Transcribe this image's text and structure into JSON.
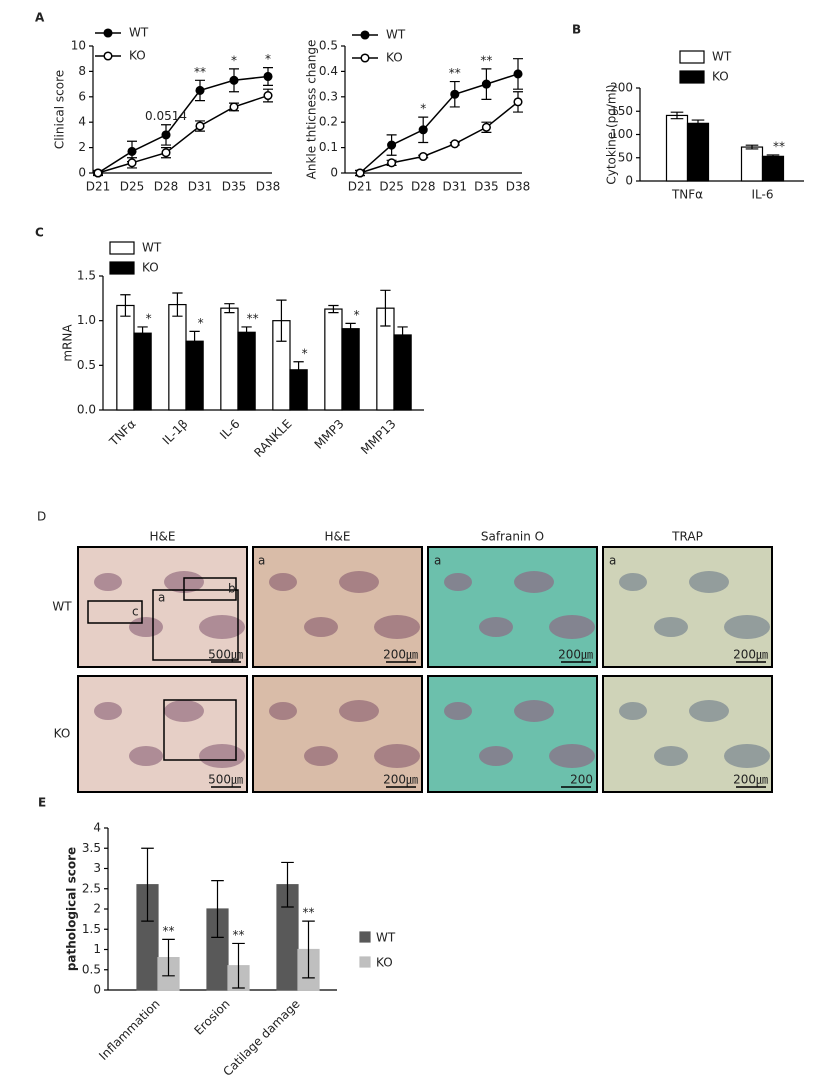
{
  "chart_data": [
    {
      "type": "line",
      "panel": "A",
      "ylabel": "Clinical score",
      "categories": [
        "D21",
        "D25",
        "D28",
        "D31",
        "D35",
        "D38"
      ],
      "ylim": [
        0,
        10
      ],
      "yticks": [
        0,
        2,
        4,
        6,
        8,
        10
      ],
      "series": [
        {
          "name": "WT",
          "color": "#000000",
          "marker_fill": "#000000",
          "values": [
            0,
            1.7,
            3.0,
            6.5,
            7.3,
            7.6
          ],
          "errors": [
            0.2,
            0.8,
            0.8,
            0.8,
            0.9,
            0.7
          ],
          "annotations": [
            null,
            null,
            "0.0514",
            "**",
            "*",
            "*"
          ]
        },
        {
          "name": "KO",
          "color": "#000000",
          "marker_fill": "#ffffff",
          "values": [
            0,
            0.8,
            1.6,
            3.7,
            5.2,
            6.1
          ],
          "errors": [
            0.1,
            0.4,
            0.4,
            0.4,
            0.3,
            0.5
          ]
        }
      ]
    },
    {
      "type": "line",
      "ylabel": "Ankle thticness change",
      "categories": [
        "D21",
        "D25",
        "D28",
        "D31",
        "D35",
        "D38"
      ],
      "ylim": [
        0,
        0.5
      ],
      "yticks": [
        0,
        0.1,
        0.2,
        0.3,
        0.4,
        0.5
      ],
      "series": [
        {
          "name": "WT",
          "color": "#000000",
          "marker_fill": "#000000",
          "values": [
            0,
            0.11,
            0.17,
            0.31,
            0.35,
            0.39
          ],
          "errors": [
            0.01,
            0.04,
            0.05,
            0.05,
            0.06,
            0.06
          ],
          "annotations": [
            null,
            null,
            "*",
            "**",
            "**",
            null
          ]
        },
        {
          "name": "KO",
          "color": "#000000",
          "marker_fill": "#ffffff",
          "values": [
            0,
            0.04,
            0.065,
            0.115,
            0.18,
            0.28
          ],
          "errors": [
            0.01,
            0.01,
            0.005,
            0.005,
            0.02,
            0.04
          ]
        }
      ]
    },
    {
      "type": "bar",
      "panel": "B",
      "ylabel": "Cytokine (pg/ml)",
      "categories": [
        "TNFα",
        "IL-6"
      ],
      "ylim": [
        0,
        200
      ],
      "yticks": [
        0,
        50,
        100,
        150,
        200
      ],
      "series": [
        {
          "name": "WT",
          "color": "#ffffff",
          "values": [
            141,
            73
          ],
          "errors": [
            7,
            4
          ]
        },
        {
          "name": "KO",
          "color": "#000000",
          "values": [
            124,
            53
          ],
          "errors": [
            7,
            3
          ],
          "annotations": [
            null,
            "**"
          ]
        }
      ]
    },
    {
      "type": "bar",
      "panel": "C",
      "ylabel": "mRNA",
      "categories": [
        "TNFα",
        "IL-1β",
        "IL-6",
        "RANKLE",
        "MMP3",
        "MMP13"
      ],
      "ylim": [
        0,
        1.5
      ],
      "yticks": [
        {
          "value": 0,
          "label": "0.0"
        },
        0.5,
        {
          "value": 1,
          "label": "1.0"
        },
        1.5
      ],
      "series": [
        {
          "name": "WT",
          "color": "#ffffff",
          "values": [
            1.17,
            1.18,
            1.14,
            1.0,
            1.13,
            1.14
          ],
          "errors": [
            0.12,
            0.13,
            0.05,
            0.23,
            0.04,
            0.2
          ]
        },
        {
          "name": "KO",
          "color": "#000000",
          "values": [
            0.86,
            0.77,
            0.87,
            0.45,
            0.91,
            0.84
          ],
          "errors": [
            0.07,
            0.11,
            0.06,
            0.09,
            0.06,
            0.09
          ],
          "annotations": [
            "*",
            "*",
            "**",
            "*",
            "*",
            null
          ]
        }
      ]
    },
    {
      "type": "bar",
      "panel": "E",
      "ylabel": "pathological score",
      "categories": [
        "Inflammation",
        "Erosion",
        "Catilage damage"
      ],
      "ylim": [
        0,
        4
      ],
      "yticks": [
        0,
        0.5,
        1,
        1.5,
        2,
        2.5,
        3,
        3.5,
        4
      ],
      "series": [
        {
          "name": "WT",
          "color": "#595959",
          "values": [
            2.6,
            2.0,
            2.6
          ],
          "errors": [
            0.9,
            0.7,
            0.55
          ]
        },
        {
          "name": "KO",
          "color": "#bfbfbf",
          "values": [
            0.8,
            0.6,
            1.0
          ],
          "errors": [
            0.45,
            0.55,
            0.7
          ],
          "annotations": [
            "**",
            "**",
            "**"
          ]
        }
      ]
    }
  ],
  "histology": {
    "panel": "D",
    "columns": [
      "H&E",
      "H&E",
      "Safranin O",
      "TRAP"
    ],
    "rows": [
      "WT",
      "KO"
    ],
    "inset_labels": [
      "c",
      "a",
      "b",
      "a",
      "a",
      "a"
    ],
    "scale_bars": [
      "500㎛",
      "200㎛",
      "200㎛",
      "200㎛",
      "500㎛",
      "200㎛",
      "200",
      "200㎛"
    ]
  }
}
